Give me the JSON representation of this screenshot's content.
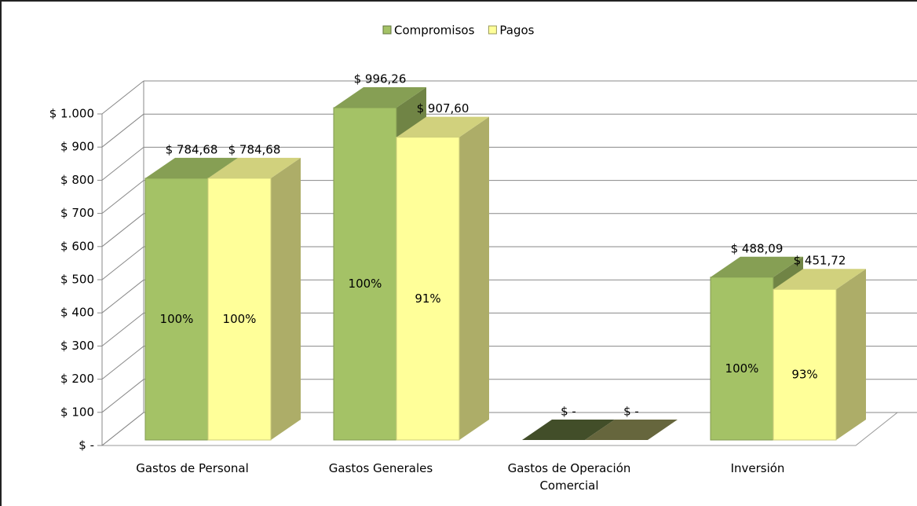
{
  "chart_data": {
    "type": "bar3d",
    "categories": [
      "Gastos de Personal",
      "Gastos Generales",
      "Gastos de Operación Comercial",
      "Inversión"
    ],
    "series": [
      {
        "name": "Compromisos",
        "color": "#a4c266",
        "values": [
          784.68,
          996.26,
          0,
          488.09
        ],
        "value_labels": [
          "$ 784,68",
          "$ 996,26",
          "$ -",
          "$ 488,09"
        ],
        "percent_labels": [
          "100%",
          "100%",
          null,
          "100%"
        ]
      },
      {
        "name": "Pagos",
        "color": "#ffff99",
        "values": [
          784.68,
          907.6,
          0,
          451.72
        ],
        "value_labels": [
          "$ 784,68",
          "$ 907,60",
          "$ -",
          "$ 451,72"
        ],
        "percent_labels": [
          "100%",
          "91%",
          null,
          "93%"
        ]
      }
    ],
    "ylim": [
      0,
      1000
    ],
    "yticks": [
      {
        "value": 0,
        "label": "$ -"
      },
      {
        "value": 100,
        "label": "$ 100"
      },
      {
        "value": 200,
        "label": "$ 200"
      },
      {
        "value": 300,
        "label": "$ 300"
      },
      {
        "value": 400,
        "label": "$ 400"
      },
      {
        "value": 500,
        "label": "$ 500"
      },
      {
        "value": 600,
        "label": "$ 600"
      },
      {
        "value": 700,
        "label": "$ 700"
      },
      {
        "value": 800,
        "label": "$ 800"
      },
      {
        "value": 900,
        "label": "$ 900"
      },
      {
        "value": 1000,
        "label": "$ 1.000"
      }
    ],
    "grid": true,
    "legend": "top"
  }
}
